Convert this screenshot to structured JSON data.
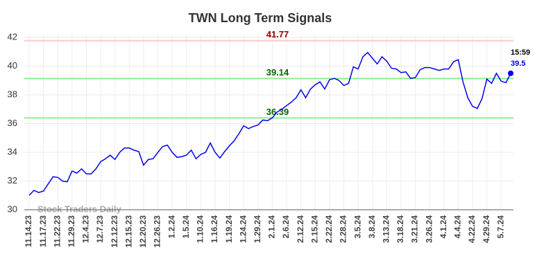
{
  "chart_data": {
    "type": "line",
    "title": "TWN Long Term Signals",
    "categories": [
      "11.14.23",
      null,
      null,
      "11.17.23",
      null,
      null,
      "11.22.23",
      null,
      null,
      "11.29.23",
      null,
      null,
      "12.4.23",
      null,
      null,
      "12.7.23",
      null,
      null,
      "12.12.23",
      null,
      null,
      "12.15.23",
      null,
      null,
      "12.20.23",
      null,
      null,
      "12.26.23",
      null,
      null,
      "1.2.24",
      null,
      null,
      "1.5.24",
      null,
      null,
      "1.10.24",
      null,
      null,
      "1.16.24",
      null,
      null,
      "1.19.24",
      null,
      null,
      "1.24.24",
      null,
      null,
      "1.29.24",
      null,
      null,
      "2.1.24",
      null,
      null,
      "2.6.24",
      null,
      null,
      "2.12.24",
      null,
      null,
      "2.15.24",
      null,
      null,
      "2.22.24",
      null,
      null,
      "2.28.24",
      null,
      null,
      "3.5.24",
      null,
      null,
      "3.8.24",
      null,
      null,
      "3.13.24",
      null,
      null,
      "3.18.24",
      null,
      null,
      "3.21.24",
      null,
      null,
      "3.26.24",
      null,
      null,
      "4.1.24",
      null,
      null,
      "4.4.24",
      null,
      null,
      "4.22.24",
      null,
      null,
      "4.29.24",
      null,
      null,
      "5.7.24",
      null,
      null
    ],
    "series": [
      {
        "name": "TWN",
        "color": "#0000ee",
        "values": [
          31.0,
          31.35,
          31.2,
          31.3,
          31.8,
          32.3,
          32.25,
          32.0,
          31.95,
          32.7,
          32.55,
          32.85,
          32.5,
          32.5,
          32.85,
          33.35,
          33.55,
          33.8,
          33.5,
          34.0,
          34.3,
          34.3,
          34.15,
          34.05,
          33.1,
          33.5,
          33.55,
          34.0,
          34.4,
          34.5,
          34.0,
          33.65,
          33.7,
          33.8,
          34.15,
          33.55,
          33.85,
          34.0,
          34.65,
          34.0,
          33.6,
          34.05,
          34.45,
          34.8,
          35.3,
          35.85,
          35.65,
          35.8,
          35.9,
          36.25,
          36.2,
          36.4,
          36.8,
          37.0,
          37.25,
          37.5,
          37.8,
          38.35,
          37.8,
          38.4,
          38.7,
          38.9,
          38.4,
          39.05,
          39.15,
          39.0,
          38.65,
          38.8,
          39.95,
          39.8,
          40.65,
          40.95,
          40.55,
          40.15,
          40.65,
          40.35,
          39.85,
          39.8,
          39.55,
          39.6,
          39.15,
          39.2,
          39.75,
          39.9,
          39.9,
          39.8,
          39.7,
          39.8,
          39.8,
          40.3,
          40.45,
          38.9,
          37.8,
          37.2,
          37.05,
          37.75,
          39.1,
          38.8,
          39.5,
          38.95,
          38.85,
          39.5
        ]
      }
    ],
    "levels": [
      {
        "value": 41.77,
        "color": "#ffc8c8",
        "label_color": "#8b0000"
      },
      {
        "value": 39.14,
        "color": "#90ee90",
        "label_color": "#006400"
      },
      {
        "value": 36.39,
        "color": "#90ee90",
        "label_color": "#006400"
      }
    ],
    "last_time": "15:59",
    "watermark": "Stock Traders Daily",
    "ylim": [
      30,
      42
    ],
    "yticks": [
      30,
      32,
      34,
      36,
      38,
      40,
      42
    ],
    "grid": true
  }
}
